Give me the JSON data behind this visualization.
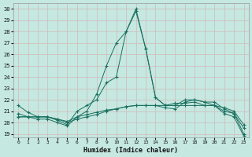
{
  "xlabel": "Humidex (Indice chaleur)",
  "bg_color": "#c5e8e0",
  "line_color": "#1a7060",
  "grid_color": "#d4b8b8",
  "ylim": [
    18.7,
    30.5
  ],
  "xlim": [
    -0.5,
    23.5
  ],
  "yticks": [
    19,
    20,
    21,
    22,
    23,
    24,
    25,
    26,
    27,
    28,
    29,
    30
  ],
  "xticks": [
    0,
    1,
    2,
    3,
    4,
    5,
    6,
    7,
    8,
    9,
    10,
    11,
    12,
    13,
    14,
    15,
    16,
    17,
    18,
    19,
    20,
    21,
    22,
    23
  ],
  "lines": [
    {
      "x": [
        0,
        1,
        2,
        3,
        4,
        5,
        6,
        7,
        8,
        9,
        10,
        11,
        12,
        13,
        14,
        15,
        16,
        17,
        18,
        19,
        20,
        21,
        22,
        23
      ],
      "y": [
        21.5,
        20.9,
        20.5,
        20.5,
        20.2,
        19.8,
        21.0,
        21.5,
        22.0,
        23.5,
        24.0,
        28.0,
        29.8,
        26.5,
        22.2,
        21.5,
        21.7,
        21.7,
        21.8,
        21.5,
        21.5,
        20.8,
        20.5,
        18.8
      ]
    },
    {
      "x": [
        0,
        1,
        2,
        3,
        4,
        5,
        6,
        7,
        8,
        9,
        10,
        11,
        12,
        13,
        14,
        15,
        16,
        17,
        18,
        19,
        20,
        21,
        22,
        23
      ],
      "y": [
        20.5,
        20.5,
        20.5,
        20.5,
        20.3,
        20.0,
        20.3,
        20.5,
        20.7,
        21.0,
        21.2,
        21.4,
        21.5,
        21.5,
        21.5,
        21.5,
        21.5,
        21.5,
        21.5,
        21.5,
        21.5,
        21.3,
        21.0,
        19.8
      ]
    },
    {
      "x": [
        0,
        1,
        2,
        3,
        4,
        5,
        6,
        7,
        8,
        9,
        10,
        11,
        12,
        13,
        14,
        15,
        16,
        17,
        18,
        19,
        20,
        21,
        22,
        23
      ],
      "y": [
        20.5,
        20.5,
        20.5,
        20.5,
        20.3,
        20.1,
        20.5,
        20.7,
        20.9,
        21.1,
        21.2,
        21.4,
        21.5,
        21.5,
        21.5,
        21.3,
        21.2,
        21.8,
        22.0,
        21.8,
        21.5,
        21.0,
        20.8,
        19.5
      ]
    },
    {
      "x": [
        0,
        1,
        2,
        3,
        4,
        5,
        6,
        7,
        8,
        9,
        10,
        11,
        12,
        13,
        14,
        15,
        16,
        17,
        18,
        19,
        20,
        21,
        22,
        23
      ],
      "y": [
        20.8,
        20.5,
        20.3,
        20.3,
        20.0,
        19.7,
        20.5,
        21.0,
        22.5,
        25.0,
        27.0,
        28.0,
        30.0,
        26.5,
        22.2,
        21.5,
        21.5,
        22.0,
        22.0,
        21.8,
        21.8,
        21.2,
        20.8,
        19.0
      ]
    }
  ]
}
